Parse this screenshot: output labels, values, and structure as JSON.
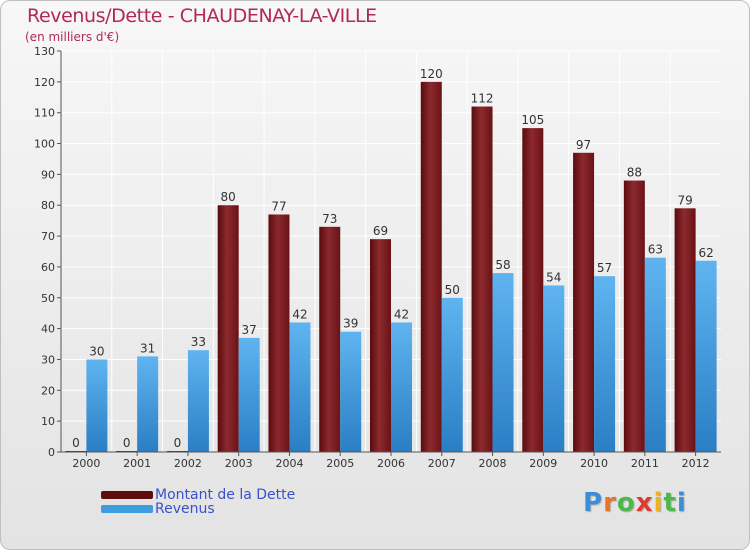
{
  "header": {
    "title": "Revenus/Dette - CHAUDENAY-LA-VILLE",
    "unit": "(en milliers d'€)"
  },
  "chart_data": {
    "type": "bar",
    "categories": [
      "2000",
      "2001",
      "2002",
      "2003",
      "2004",
      "2005",
      "2006",
      "2007",
      "2008",
      "2009",
      "2010",
      "2011",
      "2012"
    ],
    "series": [
      {
        "name": "Montant de la Dette",
        "values": [
          0,
          0,
          0,
          80,
          77,
          73,
          69,
          120,
          112,
          105,
          97,
          88,
          79
        ],
        "color": "#7a1e22"
      },
      {
        "name": "Revenus",
        "values": [
          30,
          31,
          33,
          37,
          42,
          39,
          42,
          50,
          58,
          54,
          57,
          63,
          62
        ],
        "color": "#3d9de0"
      }
    ],
    "ylim": [
      0,
      130
    ],
    "yticks": [
      0,
      10,
      20,
      30,
      40,
      50,
      60,
      70,
      80,
      90,
      100,
      110,
      120,
      130
    ],
    "grid": true,
    "legend_position": "bottom-left"
  },
  "legend": [
    {
      "label": "Montant de la Dette",
      "color": "#5e0d0f"
    },
    {
      "label": "Revenus",
      "color": "#3d9de0"
    }
  ],
  "logo": {
    "letters": [
      "P",
      "r",
      "o",
      "x",
      "i",
      "t",
      "i"
    ],
    "colors": [
      "#3a8fd8",
      "#e8742a",
      "#4db84a",
      "#e03a2e",
      "#f0b21c",
      "#4db84a",
      "#3a8fd8"
    ]
  }
}
